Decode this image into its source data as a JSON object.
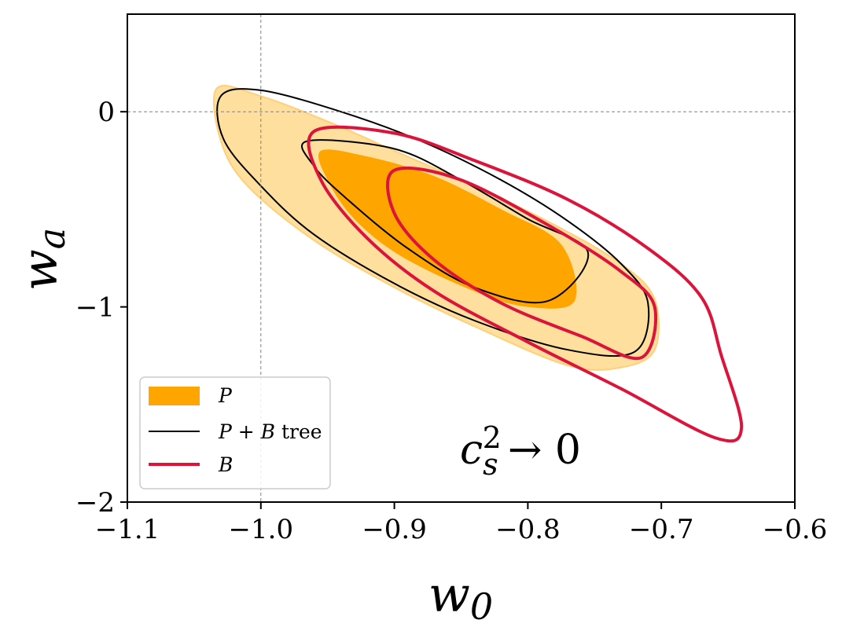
{
  "chart_data": {
    "type": "contour",
    "title": "",
    "xlabel": "w0",
    "ylabel": "wa",
    "xlim": [
      -1.1,
      -0.6
    ],
    "ylim": [
      -2.0,
      0.5
    ],
    "x_ticks": [
      -1.1,
      -1.0,
      -0.9,
      -0.8,
      -0.7,
      -0.6
    ],
    "x_tick_labels": [
      "−1.1",
      "−1.0",
      "−0.9",
      "−0.8",
      "−0.7",
      "−0.6"
    ],
    "y_ticks": [
      -2,
      -1,
      0
    ],
    "y_tick_labels": [
      "−2",
      "−1",
      "0"
    ],
    "fiducial": {
      "w0": -1.0,
      "wa": 0.0
    },
    "annotation": "c_s^2 → 0",
    "legend_position": "lower-left",
    "series": [
      {
        "name": "P",
        "legend_label": "P",
        "style": "filled",
        "color": "#ffa500",
        "contours": {
          "2sigma": [
            [
              -1.033,
              0.12
            ],
            [
              -1.0,
              0.08
            ],
            [
              -0.95,
              -0.05
            ],
            [
              -0.9,
              -0.2
            ],
            [
              -0.84,
              -0.38
            ],
            [
              -0.78,
              -0.58
            ],
            [
              -0.73,
              -0.78
            ],
            [
              -0.705,
              -0.96
            ],
            [
              -0.705,
              -1.22
            ],
            [
              -0.73,
              -1.31
            ],
            [
              -0.77,
              -1.3
            ],
            [
              -0.84,
              -1.1
            ],
            [
              -0.9,
              -0.9
            ],
            [
              -0.96,
              -0.66
            ],
            [
              -1.01,
              -0.38
            ],
            [
              -1.03,
              -0.15
            ]
          ],
          "1sigma": [
            [
              -0.955,
              -0.2
            ],
            [
              -0.92,
              -0.23
            ],
            [
              -0.87,
              -0.33
            ],
            [
              -0.82,
              -0.5
            ],
            [
              -0.775,
              -0.68
            ],
            [
              -0.765,
              -0.97
            ],
            [
              -0.8,
              -1.0
            ],
            [
              -0.84,
              -0.92
            ],
            [
              -0.895,
              -0.74
            ],
            [
              -0.93,
              -0.55
            ],
            [
              -0.95,
              -0.35
            ]
          ]
        }
      },
      {
        "name": "P + B tree",
        "legend_label_parts": [
          "P",
          " + ",
          "B",
          " tree"
        ],
        "style": "line",
        "color": "#000000",
        "contours": {
          "2sigma": [
            [
              -1.03,
              0.08
            ],
            [
              -1.0,
              0.11
            ],
            [
              -0.94,
              0.0
            ],
            [
              -0.88,
              -0.15
            ],
            [
              -0.82,
              -0.35
            ],
            [
              -0.77,
              -0.56
            ],
            [
              -0.73,
              -0.78
            ],
            [
              -0.71,
              -0.98
            ],
            [
              -0.72,
              -1.23
            ],
            [
              -0.77,
              -1.22
            ],
            [
              -0.84,
              -1.07
            ],
            [
              -0.9,
              -0.88
            ],
            [
              -0.96,
              -0.63
            ],
            [
              -1.0,
              -0.38
            ],
            [
              -1.028,
              -0.14
            ]
          ],
          "1sigma": [
            [
              -0.965,
              -0.15
            ],
            [
              -0.9,
              -0.19
            ],
            [
              -0.85,
              -0.35
            ],
            [
              -0.8,
              -0.55
            ],
            [
              -0.755,
              -0.72
            ],
            [
              -0.785,
              -0.97
            ],
            [
              -0.84,
              -0.9
            ],
            [
              -0.89,
              -0.7
            ],
            [
              -0.935,
              -0.45
            ],
            [
              -0.96,
              -0.28
            ]
          ]
        }
      },
      {
        "name": "B",
        "legend_label": "B",
        "style": "line",
        "color": "#dc143c",
        "contours": {
          "2sigma": [
            [
              -0.96,
              -0.1
            ],
            [
              -0.9,
              -0.11
            ],
            [
              -0.84,
              -0.25
            ],
            [
              -0.77,
              -0.45
            ],
            [
              -0.71,
              -0.7
            ],
            [
              -0.67,
              -0.95
            ],
            [
              -0.655,
              -1.25
            ],
            [
              -0.64,
              -1.62
            ],
            [
              -0.66,
              -1.67
            ],
            [
              -0.73,
              -1.42
            ],
            [
              -0.8,
              -1.18
            ],
            [
              -0.87,
              -0.92
            ],
            [
              -0.92,
              -0.65
            ],
            [
              -0.955,
              -0.35
            ]
          ],
          "1sigma": [
            [
              -0.9,
              -0.3
            ],
            [
              -0.85,
              -0.35
            ],
            [
              -0.78,
              -0.6
            ],
            [
              -0.73,
              -0.82
            ],
            [
              -0.705,
              -1.0
            ],
            [
              -0.715,
              -1.26
            ],
            [
              -0.76,
              -1.15
            ],
            [
              -0.82,
              -0.98
            ],
            [
              -0.87,
              -0.76
            ],
            [
              -0.9,
              -0.52
            ]
          ]
        }
      }
    ],
    "colors": {
      "p_light": "#ffdf9e",
      "p_light_edge": "#ffcf7a",
      "p_dark": "#ffa500",
      "pb": "#000000",
      "b": "#dc143c",
      "grid_ref": "#808080"
    }
  }
}
